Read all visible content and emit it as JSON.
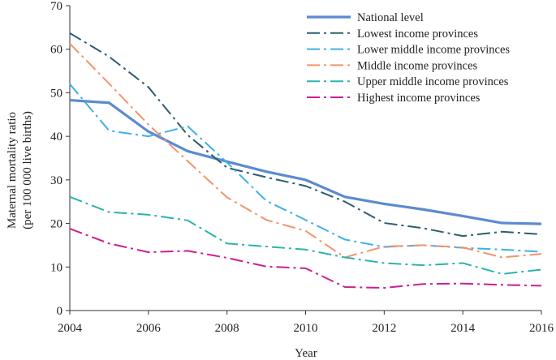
{
  "chart_data": {
    "type": "line",
    "xlabel": "Year",
    "ylabel": "Maternal mortality ratio",
    "ylabel2": "(per 100 000 live births)",
    "xlim": [
      2004,
      2016
    ],
    "ylim": [
      0,
      70
    ],
    "x_ticks": [
      "2004",
      "2006",
      "2008",
      "2010",
      "2012",
      "2014",
      "2016"
    ],
    "y_ticks": [
      "0",
      "10",
      "20",
      "30",
      "40",
      "50",
      "60",
      "70"
    ],
    "legend_position": "top-right",
    "x": [
      2004,
      2005,
      2006,
      2007,
      2008,
      2009,
      2010,
      2011,
      2012,
      2013,
      2014,
      2015,
      2016
    ],
    "series": [
      {
        "name": "National level",
        "color": "#5b8bd0",
        "style": "solid",
        "values": [
          48.3,
          47.7,
          41.1,
          36.6,
          34.2,
          31.9,
          30.0,
          26.1,
          24.5,
          23.2,
          21.7,
          20.1,
          19.9
        ]
      },
      {
        "name": "Lowest income provinces",
        "color": "#2b5e6e",
        "style": "dashdot",
        "values": [
          63.7,
          58.3,
          51.3,
          40.3,
          32.8,
          30.6,
          28.6,
          25.0,
          20.1,
          18.9,
          17.1,
          18.1,
          17.5
        ]
      },
      {
        "name": "Lower middle income provinces",
        "color": "#3fb0e6",
        "style": "dashdot",
        "values": [
          52.0,
          41.3,
          40.0,
          42.3,
          34.0,
          25.2,
          20.8,
          16.3,
          14.6,
          15.0,
          14.4,
          14.0,
          13.5
        ]
      },
      {
        "name": "Middle income provinces",
        "color": "#f4936a",
        "style": "dashdot",
        "values": [
          61.3,
          52.1,
          42.7,
          34.3,
          26.0,
          20.8,
          18.3,
          12.2,
          14.7,
          15.0,
          14.5,
          12.2,
          13.0
        ]
      },
      {
        "name": "Upper middle income provinces",
        "color": "#2ab3ae",
        "style": "dashdot",
        "values": [
          26.1,
          22.6,
          22.0,
          20.7,
          15.4,
          14.7,
          14.0,
          12.2,
          10.9,
          10.4,
          10.9,
          8.4,
          9.4
        ]
      },
      {
        "name": "Highest income provinces",
        "color": "#cc1f8e",
        "style": "dashdot",
        "values": [
          18.8,
          15.4,
          13.4,
          13.7,
          12.1,
          10.1,
          9.7,
          5.4,
          5.2,
          6.1,
          6.2,
          5.9,
          5.7
        ]
      }
    ]
  }
}
